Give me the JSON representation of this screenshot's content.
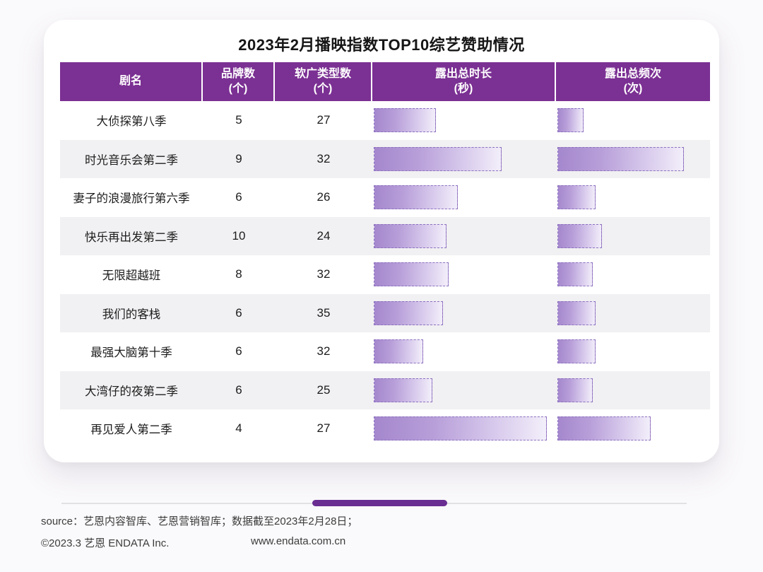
{
  "title": "2023年2月播映指数TOP10综艺赞助情况",
  "colors": {
    "header_purple": "#7b3093",
    "thumb_purple": "#6a2e92",
    "bar_gradient_start": "#a487cd",
    "bar_gradient_end": "#f3effa",
    "bar_border": "#8d72c0",
    "alt_row": "#f1f0f2"
  },
  "table": {
    "headers": [
      {
        "label": "剧名",
        "unit": ""
      },
      {
        "label": "品牌数",
        "unit": "(个)"
      },
      {
        "label": "软广类型数",
        "unit": "(个)"
      },
      {
        "label": "露出总时长",
        "unit": "(秒)"
      },
      {
        "label": "露出总频次",
        "unit": "(次)"
      }
    ],
    "rows": [
      {
        "name": "大侦探第八季",
        "brands": "5",
        "ad_types": "27",
        "duration_pct": 34,
        "frequency_pct": 17
      },
      {
        "name": "时光音乐会第二季",
        "brands": "9",
        "ad_types": "32",
        "duration_pct": 70,
        "frequency_pct": 83
      },
      {
        "name": "妻子的浪漫旅行第六季",
        "brands": "6",
        "ad_types": "26",
        "duration_pct": 46,
        "frequency_pct": 25
      },
      {
        "name": "快乐再出发第二季",
        "brands": "10",
        "ad_types": "24",
        "duration_pct": 40,
        "frequency_pct": 29
      },
      {
        "name": "无限超越班",
        "brands": "8",
        "ad_types": "32",
        "duration_pct": 41,
        "frequency_pct": 23
      },
      {
        "name": "我们的客栈",
        "brands": "6",
        "ad_types": "35",
        "duration_pct": 38,
        "frequency_pct": 25
      },
      {
        "name": "最强大脑第十季",
        "brands": "6",
        "ad_types": "32",
        "duration_pct": 27,
        "frequency_pct": 25
      },
      {
        "name": "大湾仔的夜第二季",
        "brands": "6",
        "ad_types": "25",
        "duration_pct": 32,
        "frequency_pct": 23
      },
      {
        "name": "再见爱人第二季",
        "brands": "4",
        "ad_types": "27",
        "duration_pct": 95,
        "frequency_pct": 61
      }
    ]
  },
  "chart_data": {
    "type": "table",
    "title": "2023年2月播映指数TOP10综艺赞助情况",
    "categories": [
      "大侦探第八季",
      "时光音乐会第二季",
      "妻子的浪漫旅行第六季",
      "快乐再出发第二季",
      "无限超越班",
      "我们的客栈",
      "最强大脑第十季",
      "大湾仔的夜第二季",
      "再见爱人第二季"
    ],
    "series": [
      {
        "name": "品牌数(个)",
        "values": [
          5,
          9,
          6,
          10,
          8,
          6,
          6,
          6,
          4
        ]
      },
      {
        "name": "软广类型数(个)",
        "values": [
          27,
          32,
          26,
          24,
          32,
          35,
          32,
          25,
          27
        ]
      },
      {
        "name": "露出总时长(秒)",
        "unit": "relative_bar_fraction_unlabeled",
        "values": [
          0.34,
          0.7,
          0.46,
          0.4,
          0.41,
          0.38,
          0.27,
          0.32,
          0.95
        ]
      },
      {
        "name": "露出总频次(次)",
        "unit": "relative_bar_fraction_unlabeled",
        "values": [
          0.17,
          0.83,
          0.25,
          0.29,
          0.23,
          0.25,
          0.25,
          0.23,
          0.61
        ]
      }
    ],
    "legend_position": "none",
    "grid": false,
    "note": "时长与频次列以渐变虚线边框条形表示，无数值标签；fraction为条长占列宽比例的估计值"
  },
  "footer": {
    "source": "source：艺恩内容智库、艺恩营销智库；数据截至2023年2月28日；",
    "copyright": "©2023.3 艺恩 ENDATA Inc.",
    "website": "www.endata.com.cn"
  }
}
